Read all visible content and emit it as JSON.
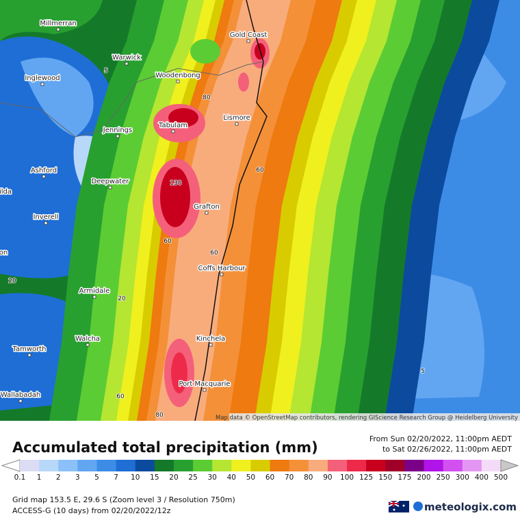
{
  "map": {
    "cities": [
      "Millmerran",
      "Warwick",
      "Inglewood",
      "Woodenbong",
      "Gold Coast",
      "Tabulam",
      "Lismore",
      "Jennings",
      "Ashford",
      "Deepwater",
      "Grafton",
      "Inverell",
      "Coffs Harbour",
      "Armidale",
      "Walcha",
      "Kinchela",
      "Tamworth",
      "Port Macquarie",
      "Wallabadah",
      "ilda",
      "on"
    ],
    "contour_labels": [
      "5",
      "80",
      "60",
      "130",
      "60",
      "60",
      "20",
      "20",
      "5",
      "60",
      "80"
    ],
    "attribution": "Map data © OpenStreetMap contributors, rendering GIScience Research Group @ Heidelberg University"
  },
  "legend": {
    "title": "Accumulated total precipitation (mm)",
    "period": [
      "From Sun 02/20/2022, 11:00pm AEDT",
      "to Sat 02/26/2022, 11:00pm AEDT"
    ],
    "scale": [
      "0.1",
      "1",
      "2",
      "3",
      "5",
      "7",
      "10",
      "15",
      "20",
      "25",
      "30",
      "40",
      "50",
      "60",
      "70",
      "80",
      "90",
      "100",
      "125",
      "150",
      "175",
      "200",
      "250",
      "300",
      "400",
      "500"
    ],
    "colors": [
      "#dcdcf4",
      "#b8d8fa",
      "#8cc0f8",
      "#62a6f2",
      "#3c8ce6",
      "#1e6ed6",
      "#0c4a9e",
      "#147a2a",
      "#28a030",
      "#5ccc34",
      "#b4e632",
      "#f0f01e",
      "#d8cc00",
      "#ee7a10",
      "#f49038",
      "#f8ac7c",
      "#f4607a",
      "#ee2a4a",
      "#c8001e",
      "#a00028",
      "#7a0088",
      "#b014e8",
      "#d250f0",
      "#e496f4",
      "#f4dcf8"
    ]
  },
  "footer": {
    "grid": "Grid map 153.5 E, 29.6 S (Zoom level 3 / Resolution 750m)",
    "model": "ACCESS-G (10 days) from 02/20/2022/12z",
    "brand": "meteologix.com"
  }
}
